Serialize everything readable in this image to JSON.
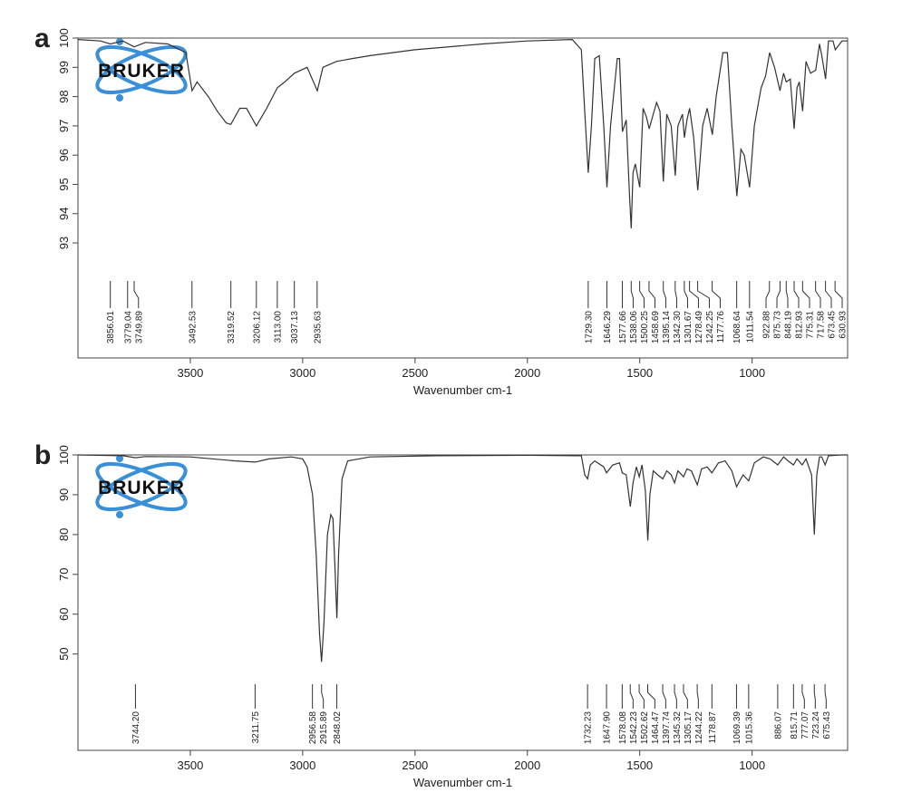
{
  "chart_data": [
    {
      "type": "line",
      "label": "a",
      "logo_text": "BRUKER",
      "xlabel": "Wavenumber cm-1",
      "color": "#333333",
      "xlim": [
        4000,
        575
      ],
      "ylim": [
        89.07,
        100
      ],
      "xticks": [
        3500,
        3000,
        2500,
        2000,
        1500,
        1000
      ],
      "yticks": [
        93,
        94,
        95,
        96,
        97,
        98,
        99,
        100
      ],
      "x": [
        4000,
        3900,
        3856,
        3800,
        3750,
        3700,
        3600,
        3520,
        3492,
        3470,
        3420,
        3380,
        3340,
        3320,
        3280,
        3250,
        3206,
        3160,
        3113,
        3080,
        3037,
        2980,
        2935,
        2910,
        2850,
        2779,
        2700,
        2500,
        2200,
        2000,
        1800,
        1760,
        1745,
        1729,
        1715,
        1700,
        1680,
        1660,
        1646,
        1630,
        1600,
        1590,
        1577,
        1560,
        1545,
        1538,
        1530,
        1520,
        1500,
        1485,
        1470,
        1458,
        1440,
        1425,
        1410,
        1395,
        1380,
        1360,
        1342,
        1330,
        1310,
        1301,
        1290,
        1278,
        1260,
        1242,
        1220,
        1200,
        1177,
        1160,
        1130,
        1110,
        1090,
        1068,
        1050,
        1035,
        1011,
        990,
        960,
        940,
        922,
        900,
        876,
        860,
        848,
        830,
        813,
        800,
        790,
        775,
        760,
        740,
        717,
        700,
        690,
        673,
        660,
        640,
        630,
        600,
        575
      ],
      "values": [
        99.95,
        99.9,
        99.8,
        99.9,
        99.7,
        99.85,
        99.8,
        99.5,
        98.2,
        98.5,
        98.0,
        97.5,
        97.1,
        97.05,
        97.6,
        97.6,
        97.0,
        97.6,
        98.3,
        98.5,
        98.8,
        99.0,
        98.2,
        99.0,
        99.2,
        99.3,
        99.4,
        99.6,
        99.8,
        99.9,
        99.95,
        99.6,
        97.5,
        95.4,
        97,
        99.3,
        99.4,
        97,
        94.9,
        97,
        99.3,
        99.3,
        96.8,
        97.2,
        94.5,
        93.5,
        95.4,
        95.7,
        94.9,
        97.6,
        97.3,
        96.9,
        97.4,
        97.8,
        97.5,
        95.1,
        97.4,
        97.0,
        95.3,
        97,
        97.4,
        96.6,
        97.2,
        97.6,
        96.6,
        94.8,
        97.0,
        97.6,
        96.7,
        98,
        99.5,
        99.5,
        97,
        94.6,
        96.2,
        96.0,
        94.9,
        97.0,
        98.3,
        98.7,
        99.5,
        99.0,
        98.2,
        98.8,
        98.5,
        98.6,
        96.9,
        98.3,
        98.5,
        97.5,
        99.2,
        98.8,
        98.9,
        99.8,
        99.4,
        98.6,
        99.9,
        99.9,
        99.6,
        99.9,
        99.9
      ],
      "peaks": [
        3856.01,
        3749.89,
        3492.53,
        3319.52,
        3206.12,
        {
          "value": 3113,
          "label": "3113.00"
        },
        3037.13,
        2935.63,
        3779.04,
        {
          "value": 1729.3,
          "label": "1729.30"
        },
        1646.29,
        1577.66,
        1538.06,
        1500.25,
        1458.69,
        1395.14,
        {
          "value": 1342.3,
          "label": "1342.30"
        },
        1301.67,
        1278.49,
        1242.25,
        1177.76,
        1068.64,
        1011.54,
        922.88,
        875.73,
        848.19,
        812.93,
        775.31,
        717.58,
        673.45,
        630.93
      ]
    },
    {
      "type": "line",
      "label": "b",
      "logo_text": "BRUKER",
      "xlabel": "Wavenumber cm-1",
      "color": "#333333",
      "xlim": [
        4000,
        575
      ],
      "ylim": [
        25.8,
        100
      ],
      "xticks": [
        3500,
        3000,
        2500,
        2000,
        1500,
        1000
      ],
      "yticks": [
        50,
        60,
        70,
        80,
        90,
        100
      ],
      "x": [
        4000,
        3800,
        3744,
        3700,
        3500,
        3300,
        3211,
        3150,
        3050,
        3000,
        2980,
        2956,
        2940,
        2925,
        2916,
        2905,
        2890,
        2875,
        2865,
        2855,
        2848,
        2840,
        2825,
        2800,
        2700,
        2400,
        2000,
        1760,
        1745,
        1732,
        1720,
        1700,
        1660,
        1648,
        1620,
        1590,
        1578,
        1560,
        1542,
        1530,
        1515,
        1502,
        1490,
        1475,
        1464,
        1455,
        1440,
        1420,
        1397,
        1380,
        1360,
        1345,
        1330,
        1305,
        1290,
        1270,
        1244,
        1225,
        1200,
        1179,
        1150,
        1120,
        1090,
        1069,
        1040,
        1015,
        990,
        950,
        920,
        886,
        860,
        840,
        816,
        800,
        777,
        760,
        735,
        723,
        712,
        700,
        690,
        675,
        660,
        600,
        575
      ],
      "values": [
        100,
        99.8,
        99.3,
        99.6,
        99.5,
        98.5,
        98.2,
        99,
        99.5,
        99,
        97,
        90,
        75,
        55,
        48,
        58,
        80,
        85,
        84,
        70,
        59,
        75,
        94,
        98.5,
        99.5,
        99.8,
        99.9,
        99.8,
        95,
        94,
        97.5,
        98.5,
        97,
        95.5,
        97.5,
        98,
        95.5,
        95,
        87,
        93,
        97,
        94.5,
        97.5,
        91,
        78.5,
        90,
        96,
        95,
        94,
        96,
        95,
        93,
        96,
        94.5,
        96.5,
        96,
        92.5,
        96.5,
        97,
        95.5,
        98,
        98.5,
        96,
        92,
        95,
        93.5,
        98,
        99.5,
        99,
        97.5,
        99.5,
        98.5,
        97.5,
        99,
        97.5,
        99,
        95,
        80,
        95,
        99.5,
        99.5,
        97.5,
        99.8,
        100,
        100
      ],
      "peaks": [
        {
          "value": 3744.2,
          "label": "3744.20"
        },
        3211.75,
        2956.58,
        2915.89,
        2848.02,
        1732.23,
        {
          "value": 1647.9,
          "label": "1647.90"
        },
        1578.08,
        1542.23,
        1502.62,
        1464.47,
        1397.74,
        1345.32,
        1305.17,
        1244.22,
        1178.87,
        1069.39,
        1015.36,
        886.07,
        815.71,
        777.07,
        723.24,
        675.43
      ]
    }
  ]
}
